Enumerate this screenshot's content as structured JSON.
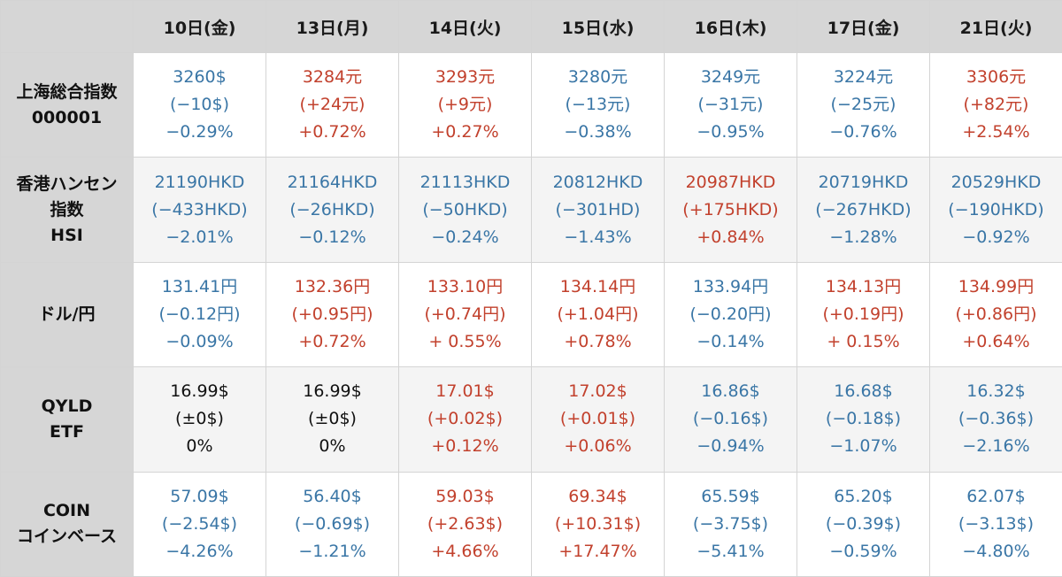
{
  "colors": {
    "up": "#c2412d",
    "down": "#3a76a6",
    "flat": "#111111",
    "header_bg": "#d6d6d6"
  },
  "table": {
    "days": [
      "10日(金)",
      "13日(月)",
      "14日(火)",
      "15日(水)",
      "16日(木)",
      "17日(金)",
      "21日(火)"
    ],
    "rows": [
      {
        "label": [
          "上海総合指数",
          "000001"
        ],
        "cells": [
          {
            "tone": "blue",
            "lines": [
              "3260$",
              "(−10$)",
              "−0.29%"
            ]
          },
          {
            "tone": "red",
            "lines": [
              "3284元",
              "(+24元)",
              "+0.72%"
            ]
          },
          {
            "tone": "red",
            "lines": [
              "3293元",
              "(+9元)",
              "+0.27%"
            ]
          },
          {
            "tone": "blue",
            "lines": [
              "3280元",
              "(−13元)",
              "−0.38%"
            ]
          },
          {
            "tone": "blue",
            "lines": [
              "3249元",
              "(−31元)",
              "−0.95%"
            ]
          },
          {
            "tone": "blue",
            "lines": [
              "3224元",
              "(−25元)",
              "−0.76%"
            ]
          },
          {
            "tone": "red",
            "lines": [
              "3306元",
              "(+82元)",
              "+2.54%"
            ]
          }
        ]
      },
      {
        "label": [
          "香港ハンセン",
          "指数",
          "HSI"
        ],
        "cells": [
          {
            "tone": "blue",
            "lines": [
              "21190HKD",
              "(−433HKD)",
              "−2.01%"
            ]
          },
          {
            "tone": "blue",
            "lines": [
              "21164HKD",
              "(−26HKD)",
              "−0.12%"
            ]
          },
          {
            "tone": "blue",
            "lines": [
              "21113HKD",
              "(−50HKD)",
              "−0.24%"
            ]
          },
          {
            "tone": "blue",
            "lines": [
              "20812HKD",
              "(−301HD)",
              "−1.43%"
            ]
          },
          {
            "tone": "red",
            "lines": [
              "20987HKD",
              "(+175HKD)",
              "+0.84%"
            ]
          },
          {
            "tone": "blue",
            "lines": [
              "20719HKD",
              "(−267HKD)",
              "−1.28%"
            ]
          },
          {
            "tone": "blue",
            "lines": [
              "20529HKD",
              "(−190HKD)",
              "−0.92%"
            ]
          }
        ]
      },
      {
        "label": [
          "ドル/円"
        ],
        "cells": [
          {
            "tone": "blue",
            "lines": [
              "131.41円",
              "(−0.12円)",
              "−0.09%"
            ]
          },
          {
            "tone": "red",
            "lines": [
              "132.36円",
              "(+0.95円)",
              "+0.72%"
            ]
          },
          {
            "tone": "red",
            "lines": [
              "133.10円",
              "(+0.74円)",
              "+ 0.55%"
            ]
          },
          {
            "tone": "red",
            "lines": [
              "134.14円",
              "(+1.04円)",
              "+0.78%"
            ]
          },
          {
            "tone": "blue",
            "lines": [
              "133.94円",
              "(−0.20円)",
              "−0.14%"
            ]
          },
          {
            "tone": "red",
            "lines": [
              "134.13円",
              "(+0.19円)",
              "+ 0.15%"
            ]
          },
          {
            "tone": "red",
            "lines": [
              "134.99円",
              "(+0.86円)",
              "+0.64%"
            ]
          }
        ]
      },
      {
        "label": [
          "QYLD",
          "ETF"
        ],
        "cells": [
          {
            "tone": "black",
            "lines": [
              "16.99$",
              "(±0$)",
              "0%"
            ]
          },
          {
            "tone": "black",
            "lines": [
              "16.99$",
              "(±0$)",
              "0%"
            ]
          },
          {
            "tone": "red",
            "lines": [
              "17.01$",
              "(+0.02$)",
              "+0.12%"
            ]
          },
          {
            "tone": "red",
            "lines": [
              "17.02$",
              "(+0.01$)",
              "+0.06%"
            ]
          },
          {
            "tone": "blue",
            "lines": [
              "16.86$",
              "(−0.16$)",
              "−0.94%"
            ]
          },
          {
            "tone": "blue",
            "lines": [
              "16.68$",
              "(−0.18$)",
              "−1.07%"
            ]
          },
          {
            "tone": "blue",
            "lines": [
              "16.32$",
              "(−0.36$)",
              "−2.16%"
            ]
          }
        ]
      },
      {
        "label": [
          "COIN",
          "コインベース"
        ],
        "cells": [
          {
            "tone": "blue",
            "lines": [
              "57.09$",
              "(−2.54$)",
              "−4.26%"
            ]
          },
          {
            "tone": "blue",
            "lines": [
              "56.40$",
              "(−0.69$)",
              "−1.21%"
            ]
          },
          {
            "tone": "red",
            "lines": [
              "59.03$",
              "(+2.63$)",
              "+4.66%"
            ]
          },
          {
            "tone": "red",
            "lines": [
              "69.34$",
              "(+10.31$)",
              "+17.47%"
            ]
          },
          {
            "tone": "blue",
            "lines": [
              "65.59$",
              "(−3.75$)",
              "−5.41%"
            ]
          },
          {
            "tone": "blue",
            "lines": [
              "65.20$",
              "(−0.39$)",
              "−0.59%"
            ]
          },
          {
            "tone": "blue",
            "lines": [
              "62.07$",
              "(−3.13$)",
              "−4.80%"
            ]
          }
        ]
      }
    ]
  }
}
